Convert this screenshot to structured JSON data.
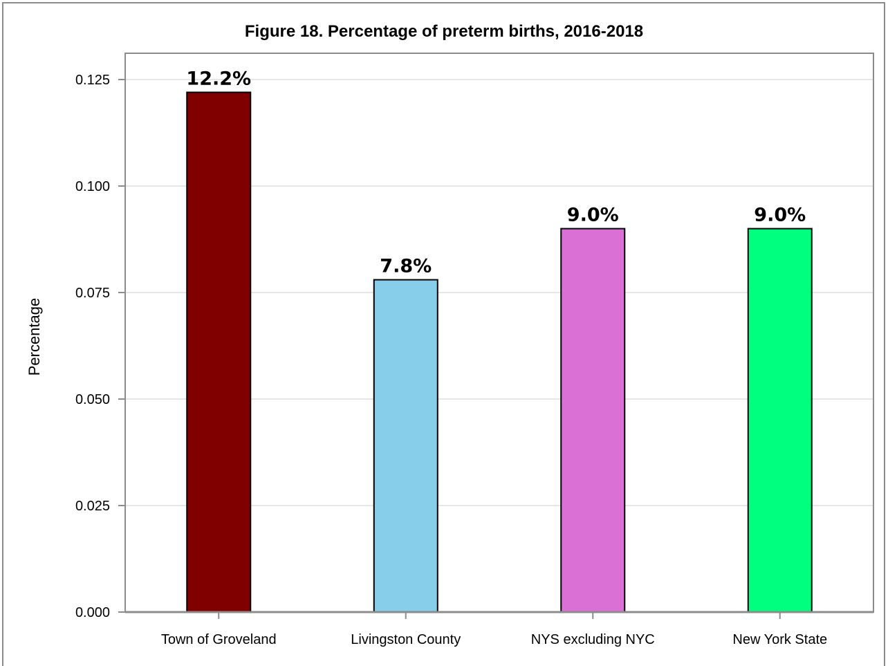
{
  "chart_data": {
    "type": "bar",
    "title": "Figure 18. Percentage of preterm births, 2016-2018",
    "xlabel": "",
    "ylabel": "Percentage",
    "ylim": [
      0,
      0.125
    ],
    "yticks": [
      "0.000",
      "0.025",
      "0.050",
      "0.075",
      "0.100",
      "0.125"
    ],
    "ytick_values": [
      0,
      0.025,
      0.05,
      0.075,
      0.1,
      0.125
    ],
    "grid": true,
    "categories": [
      "Town of Groveland",
      "Livingston County",
      "NYS excluding NYC",
      "New York State"
    ],
    "values": [
      0.122,
      0.078,
      0.09,
      0.09
    ],
    "data_labels": [
      "12.2%",
      "7.8%",
      "9.0%",
      "9.0%"
    ],
    "colors": [
      "#800000",
      "#87ceeb",
      "#da70d6",
      "#00ff7f"
    ]
  }
}
